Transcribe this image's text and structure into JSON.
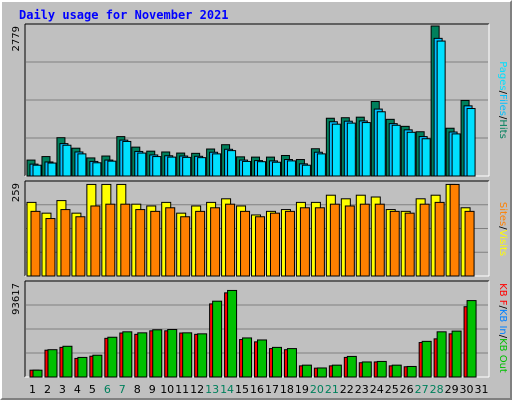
{
  "title": "Daily usage for November 2021",
  "colors": {
    "hits": "#00805c",
    "files": "#00c0ff",
    "pages": "#00e0ff",
    "visits": "#ffff00",
    "sites": "#ff8000",
    "kbin": "#0080ff",
    "kbout": "#00c000",
    "kbf": "#ff0000",
    "panel_bg": "#c0c0c0",
    "weekend_label": "#00805c",
    "weekday_label": "#000000",
    "title": "#0000ff"
  },
  "right_legends": {
    "top": [
      {
        "text": "Pages",
        "color": "#00e0ff"
      },
      {
        "text": "/",
        "color": "#000000"
      },
      {
        "text": "Files",
        "color": "#00c0ff"
      },
      {
        "text": "/",
        "color": "#000000"
      },
      {
        "text": "Hits",
        "color": "#00805c"
      }
    ],
    "middle": [
      {
        "text": "Sites",
        "color": "#ff8000"
      },
      {
        "text": "/",
        "color": "#000000"
      },
      {
        "text": "Visits",
        "color": "#ffff00"
      }
    ],
    "bottom": [
      {
        "text": "KB F",
        "color": "#ff0000"
      },
      {
        "text": "/",
        "color": "#000000"
      },
      {
        "text": "KB In",
        "color": "#0080ff"
      },
      {
        "text": "/",
        "color": "#000000"
      },
      {
        "text": "KB Out",
        "color": "#00c000"
      }
    ]
  },
  "chart_data": [
    {
      "type": "bar",
      "title": "Daily usage for November 2021",
      "ylabel": "2779",
      "ymax": 2779,
      "categories": [
        "1",
        "2",
        "3",
        "4",
        "5",
        "6",
        "7",
        "8",
        "9",
        "10",
        "11",
        "12",
        "13",
        "14",
        "15",
        "16",
        "17",
        "18",
        "19",
        "20",
        "21",
        "22",
        "23",
        "24",
        "25",
        "26",
        "27",
        "28",
        "29",
        "30",
        "31"
      ],
      "weekend_days": [
        "6",
        "7",
        "13",
        "14",
        "20",
        "21",
        "27",
        "28"
      ],
      "series": [
        {
          "name": "Hits",
          "color": "#00805c",
          "values": [
            295,
            360,
            710,
            515,
            335,
            370,
            730,
            535,
            460,
            445,
            425,
            420,
            500,
            580,
            355,
            350,
            350,
            380,
            305,
            505,
            1070,
            1080,
            1090,
            1380,
            1050,
            920,
            820,
            2779,
            885,
            1400,
            null
          ]
        },
        {
          "name": "Files",
          "color": "#00c0ff",
          "values": [
            220,
            260,
            600,
            445,
            270,
            295,
            665,
            455,
            390,
            375,
            370,
            365,
            440,
            495,
            295,
            285,
            280,
            305,
            225,
            440,
            1005,
            1015,
            1020,
            1240,
            970,
            855,
            730,
            2550,
            815,
            1300,
            null
          ]
        },
        {
          "name": "Pages",
          "color": "#00e0ff",
          "values": [
            200,
            240,
            570,
            410,
            245,
            275,
            640,
            425,
            360,
            350,
            345,
            340,
            410,
            470,
            270,
            265,
            255,
            280,
            200,
            410,
            960,
            980,
            990,
            1190,
            940,
            810,
            690,
            2500,
            780,
            1250,
            null
          ]
        }
      ]
    },
    {
      "type": "bar",
      "ylabel": "259",
      "ymax": 259,
      "categories": [
        "1",
        "2",
        "3",
        "4",
        "5",
        "6",
        "7",
        "8",
        "9",
        "10",
        "11",
        "12",
        "13",
        "14",
        "15",
        "16",
        "17",
        "18",
        "19",
        "20",
        "21",
        "22",
        "23",
        "24",
        "25",
        "26",
        "27",
        "28",
        "29",
        "30",
        "31"
      ],
      "series": [
        {
          "name": "Visits",
          "color": "#ffff00",
          "values": [
            205,
            175,
            210,
            175,
            255,
            255,
            255,
            200,
            195,
            205,
            175,
            195,
            205,
            215,
            195,
            170,
            180,
            185,
            205,
            205,
            225,
            215,
            225,
            220,
            185,
            180,
            215,
            225,
            255,
            190,
            null
          ]
        },
        {
          "name": "Sites",
          "color": "#ff8000",
          "values": [
            180,
            160,
            185,
            165,
            195,
            200,
            200,
            185,
            180,
            190,
            165,
            180,
            190,
            200,
            180,
            165,
            175,
            180,
            190,
            190,
            200,
            195,
            200,
            200,
            180,
            175,
            200,
            205,
            255,
            180,
            null
          ]
        }
      ]
    },
    {
      "type": "bar",
      "ylabel": "93617",
      "ymax": 93617,
      "categories": [
        "1",
        "2",
        "3",
        "4",
        "5",
        "6",
        "7",
        "8",
        "9",
        "10",
        "11",
        "12",
        "13",
        "14",
        "15",
        "16",
        "17",
        "18",
        "19",
        "20",
        "21",
        "22",
        "23",
        "24",
        "25",
        "26",
        "27",
        "28",
        "29",
        "30",
        "31"
      ],
      "series": [
        {
          "name": "KB F",
          "color": "#ff0000",
          "values": [
            6800,
            26700,
            29500,
            18500,
            20700,
            38500,
            43800,
            42500,
            46000,
            46000,
            43800,
            42500,
            72800,
            83800,
            37300,
            35000,
            28300,
            27200,
            11100,
            8800,
            11100,
            19500,
            14200,
            15000,
            11100,
            10200,
            34300,
            38000,
            43000,
            70000,
            null
          ]
        },
        {
          "name": "KB Out",
          "color": "#00c000",
          "values": [
            6800,
            27200,
            30600,
            19500,
            21700,
            39600,
            45000,
            44000,
            47000,
            47300,
            44000,
            43000,
            75500,
            86200,
            38900,
            36900,
            29500,
            28300,
            11800,
            9000,
            11800,
            20500,
            15000,
            15500,
            11800,
            10500,
            35500,
            45000,
            45700,
            76100,
            null
          ]
        }
      ]
    }
  ]
}
